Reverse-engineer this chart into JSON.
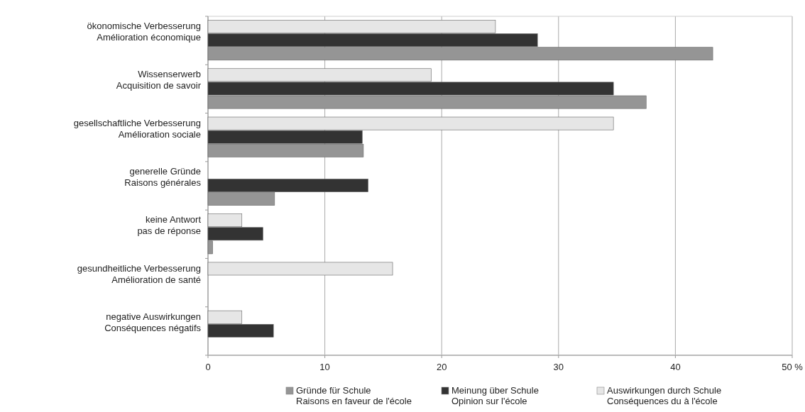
{
  "chart_data": {
    "type": "bar",
    "orientation": "horizontal",
    "categories": [
      "ökonomische Verbesserung\nAmélioration économique",
      "Wissenserwerb\nAcquisition de savoir",
      "gesellschaftliche Verbesserung\nAmélioration sociale",
      "generelle Gründe\nRaisons générales",
      "keine Antwort\npas de réponse",
      "gesundheitliche Verbesserung\nAmélioration de santé",
      "negative Auswirkungen\nConséquences négatifs"
    ],
    "series": [
      {
        "name": "Gründe für Schule\nRaisons en faveur de l'école",
        "color": "#959595",
        "values": [
          43.2,
          37.5,
          13.3,
          5.7,
          0.4,
          null,
          null
        ]
      },
      {
        "name": "Meinung über Schule\nOpinion sur l'école",
        "color": "#333333",
        "values": [
          28.2,
          34.7,
          13.2,
          13.7,
          4.7,
          null,
          5.6
        ]
      },
      {
        "name": "Auswirkungen durch Schule\nConséquences du  à l'école",
        "color": "#e6e6e6",
        "values": [
          24.6,
          19.1,
          34.7,
          null,
          2.9,
          15.8,
          2.9
        ]
      }
    ],
    "xlim": [
      0,
      50
    ],
    "xticks": [
      0,
      10,
      20,
      30,
      40,
      {
        "value": 50,
        "label": "50 %"
      }
    ],
    "grid": "x",
    "legend": "bottom"
  }
}
